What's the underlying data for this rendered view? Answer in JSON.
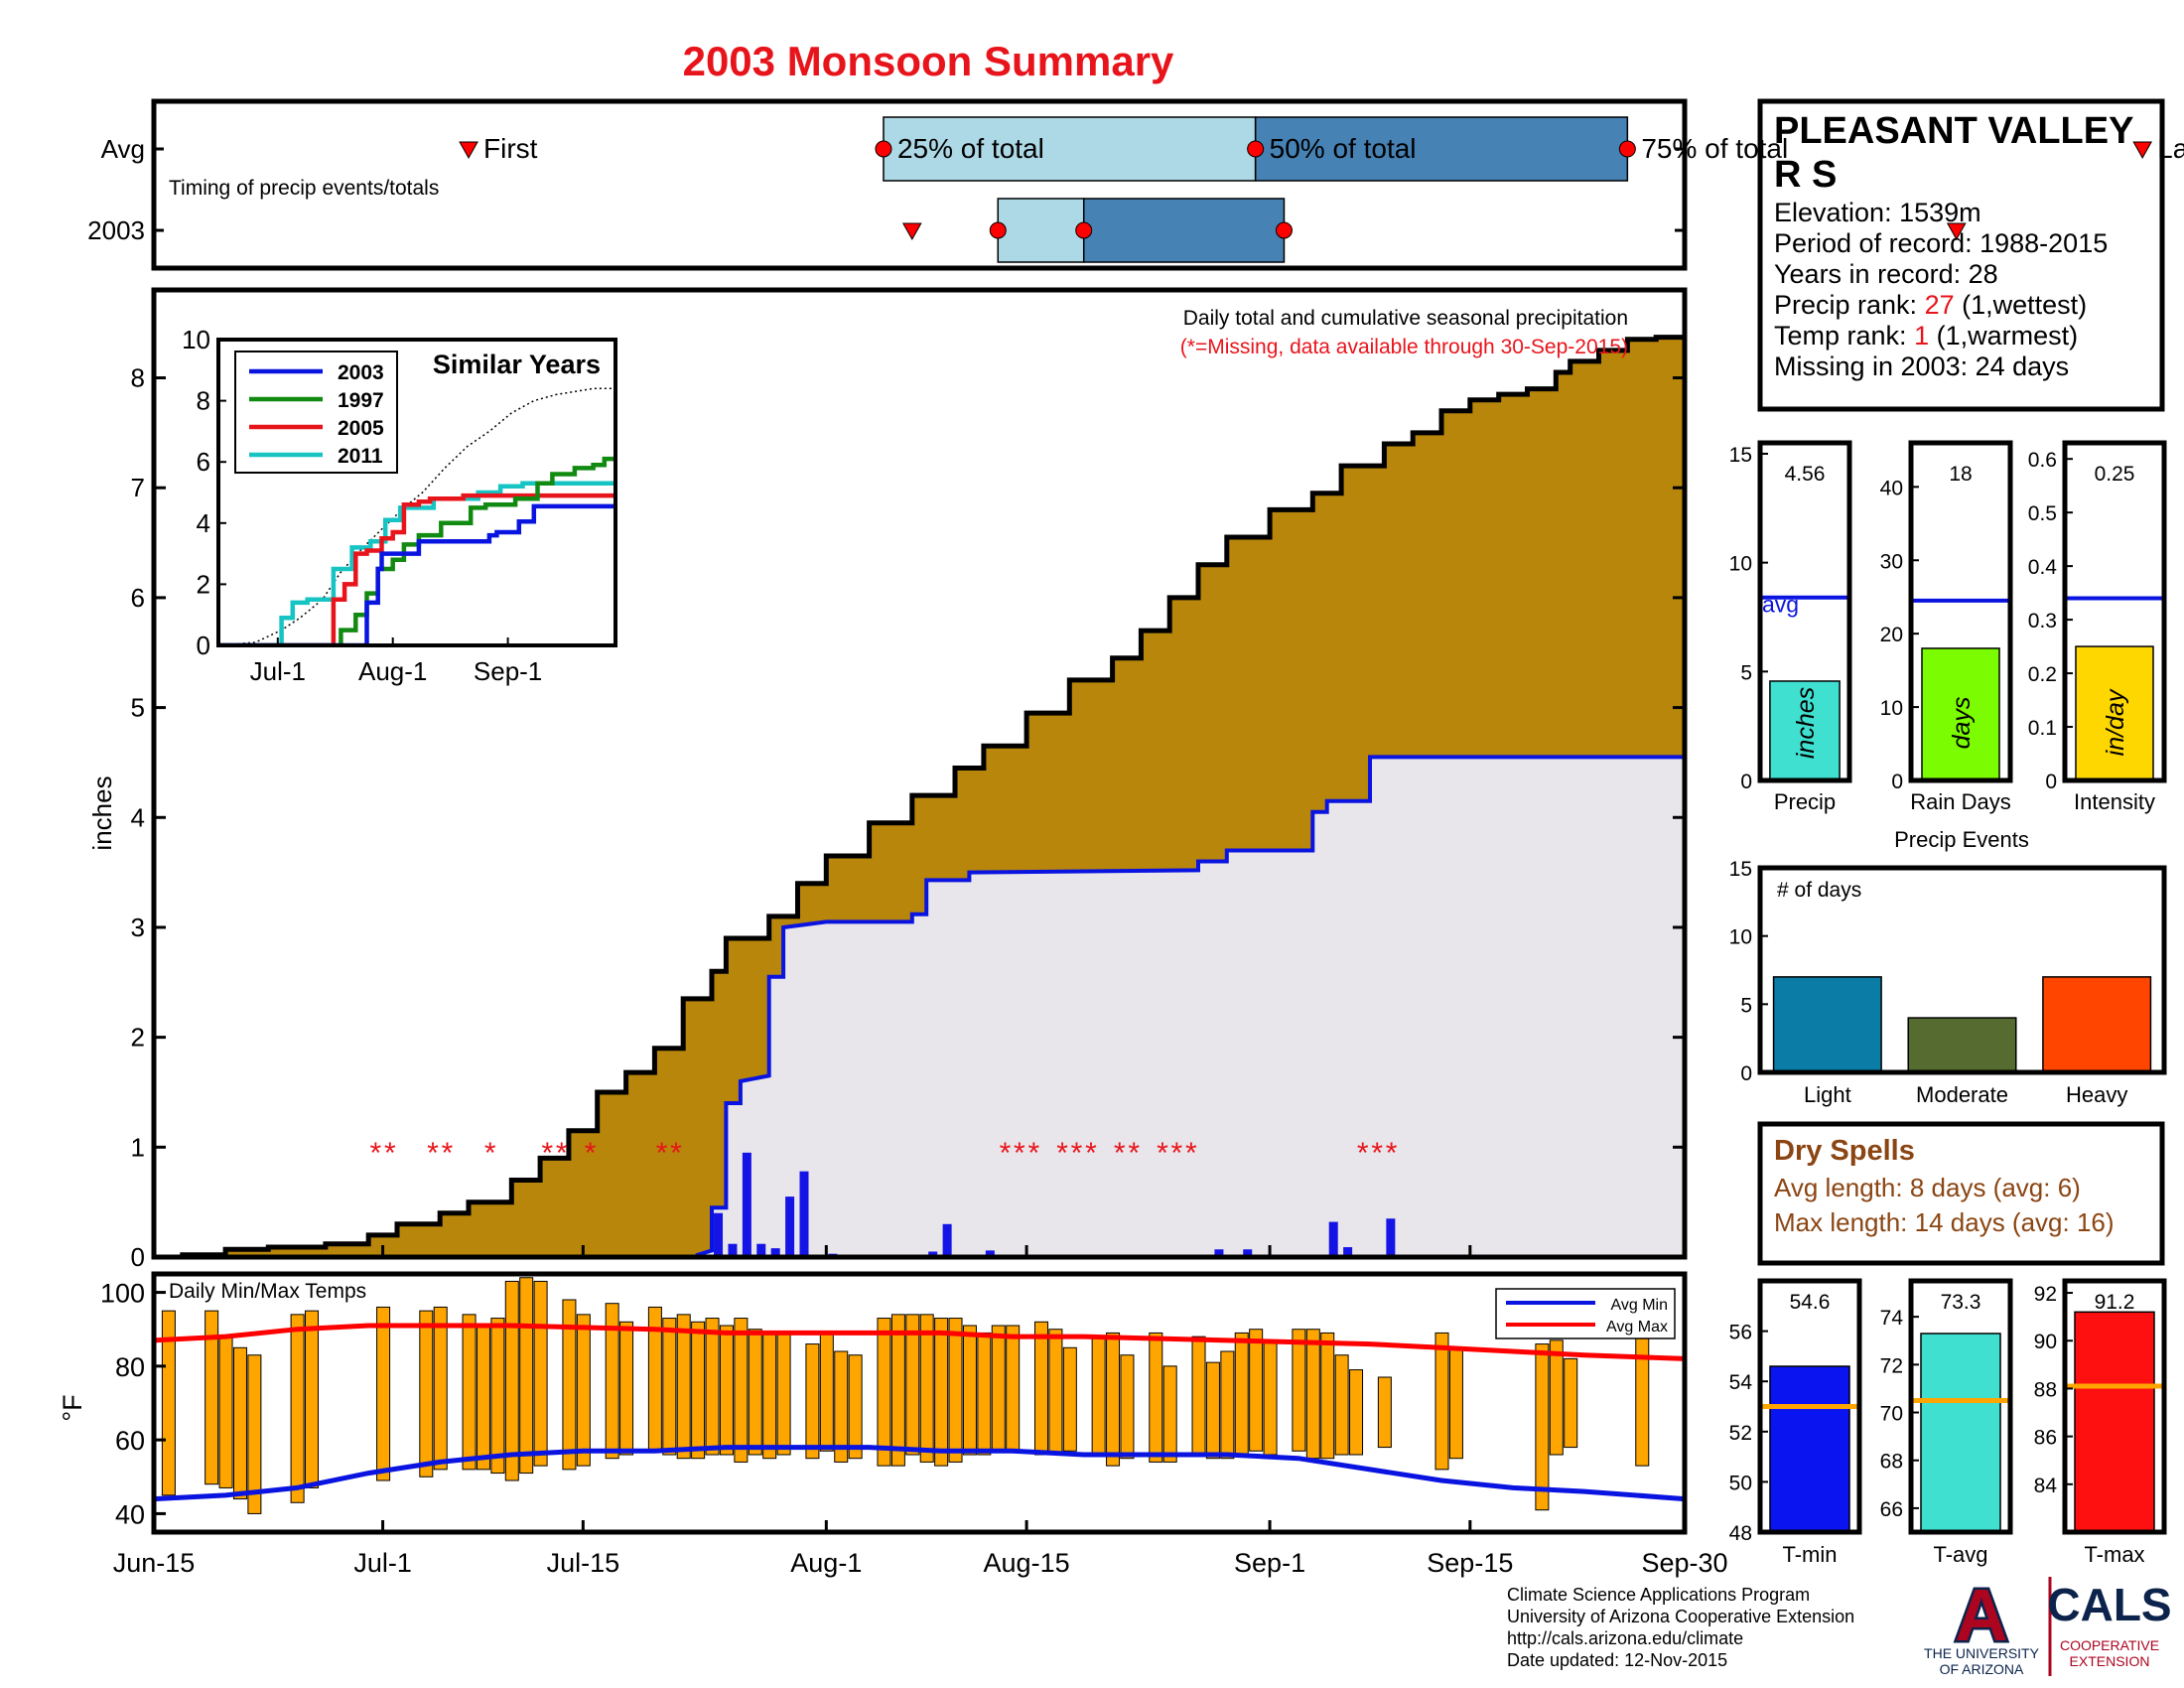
{
  "page_title": "2003 Monsoon Summary",
  "colors": {
    "accent_red": "#e8141b",
    "fill_brown": "#b8860b",
    "fill_gray": "#e8e6ea",
    "line_blue": "#0a14e0",
    "bar_blue": "#1414e6"
  },
  "timing": {
    "caption": "Timing of precip events/totals",
    "rows": [
      "Avg",
      "2003"
    ],
    "labels": {
      "first": "First",
      "p25": "25% of total",
      "p50": "50% of total",
      "p75": "75% of total",
      "last": "Last"
    },
    "x_domain": [
      "Jun-15",
      "Sep-30"
    ],
    "avg": {
      "first": 22,
      "p25": 51,
      "p50": 77,
      "p75": 103,
      "last": 139
    },
    "y2003": {
      "first": 53,
      "p25": 59,
      "p50": 65,
      "p75": 79,
      "last": 126
    }
  },
  "station": {
    "name_line1": "PLEASANT VALLEY",
    "name_line2": "R S",
    "elevation": "Elevation: 1539m",
    "period": "Period of record: 1988-2015",
    "years": "Years in record: 28",
    "precip_rank_label": "Precip rank: ",
    "precip_rank_value": "27",
    "precip_rank_note": " (1,wettest)",
    "temp_rank_label": "Temp rank: ",
    "temp_rank_value": "1",
    "temp_rank_note": " (1,warmest)",
    "missing": "Missing in 2003: 24 days"
  },
  "main_chart": {
    "type": "area",
    "ylabel": "inches",
    "ylim": [
      0,
      8.8
    ],
    "yticks": [
      0,
      1,
      2,
      3,
      4,
      5,
      6,
      7,
      8
    ],
    "xticks": [
      "Jun-15",
      "Jul-1",
      "Jul-15",
      "Aug-1",
      "Aug-15",
      "Sep-1",
      "Sep-15",
      "Sep-30"
    ],
    "xtick_days": [
      0,
      16,
      30,
      47,
      61,
      78,
      92,
      107
    ],
    "note_line1": "Daily total and cumulative seasonal precipitation",
    "note_line2": "(*=Missing, data available through 30-Sep-2015)",
    "missing_marker": "*",
    "avg_cumulative": [
      [
        0,
        0
      ],
      [
        2,
        0.02
      ],
      [
        5,
        0.07
      ],
      [
        8,
        0.09
      ],
      [
        12,
        0.12
      ],
      [
        15,
        0.2
      ],
      [
        17,
        0.3
      ],
      [
        20,
        0.4
      ],
      [
        22,
        0.5
      ],
      [
        25,
        0.7
      ],
      [
        27,
        0.9
      ],
      [
        29,
        1.15
      ],
      [
        31,
        1.5
      ],
      [
        33,
        1.68
      ],
      [
        35,
        1.9
      ],
      [
        37,
        2.35
      ],
      [
        39,
        2.6
      ],
      [
        40,
        2.9
      ],
      [
        43,
        3.1
      ],
      [
        45,
        3.4
      ],
      [
        47,
        3.65
      ],
      [
        50,
        3.95
      ],
      [
        53,
        4.2
      ],
      [
        56,
        4.45
      ],
      [
        58,
        4.65
      ],
      [
        61,
        4.95
      ],
      [
        64,
        5.25
      ],
      [
        67,
        5.45
      ],
      [
        69,
        5.7
      ],
      [
        71,
        6.0
      ],
      [
        73,
        6.3
      ],
      [
        75,
        6.55
      ],
      [
        78,
        6.8
      ],
      [
        81,
        6.95
      ],
      [
        83,
        7.2
      ],
      [
        86,
        7.4
      ],
      [
        88,
        7.5
      ],
      [
        90,
        7.7
      ],
      [
        92,
        7.8
      ],
      [
        94,
        7.85
      ],
      [
        96,
        7.9
      ],
      [
        98,
        8.05
      ],
      [
        99,
        8.15
      ],
      [
        101,
        8.25
      ],
      [
        103,
        8.35
      ],
      [
        105,
        8.37
      ],
      [
        107,
        8.38
      ]
    ],
    "cumulative_2003": [
      [
        0,
        0
      ],
      [
        38,
        0
      ],
      [
        38,
        0.02
      ],
      [
        39,
        0.06
      ],
      [
        39,
        0.45
      ],
      [
        40,
        0.45
      ],
      [
        40,
        1.4
      ],
      [
        41,
        1.4
      ],
      [
        41,
        1.6
      ],
      [
        43,
        1.65
      ],
      [
        43,
        2.55
      ],
      [
        44,
        2.55
      ],
      [
        44,
        3.0
      ],
      [
        47,
        3.05
      ],
      [
        53,
        3.05
      ],
      [
        53,
        3.12
      ],
      [
        54,
        3.12
      ],
      [
        54,
        3.43
      ],
      [
        57,
        3.43
      ],
      [
        57,
        3.5
      ],
      [
        73,
        3.52
      ],
      [
        73,
        3.6
      ],
      [
        75,
        3.6
      ],
      [
        75,
        3.7
      ],
      [
        81,
        3.7
      ],
      [
        81,
        4.05
      ],
      [
        82,
        4.05
      ],
      [
        82,
        4.15
      ],
      [
        85,
        4.15
      ],
      [
        85,
        4.55
      ],
      [
        107,
        4.55
      ]
    ],
    "daily_bars_2003": [
      [
        39,
        0.4
      ],
      [
        40,
        0.12
      ],
      [
        41,
        0.95
      ],
      [
        42,
        0.12
      ],
      [
        43,
        0.08
      ],
      [
        44,
        0.55
      ],
      [
        45,
        0.78
      ],
      [
        47,
        0.03
      ],
      [
        54,
        0.05
      ],
      [
        55,
        0.3
      ],
      [
        58,
        0.06
      ],
      [
        74,
        0.07
      ],
      [
        76,
        0.07
      ],
      [
        82,
        0.32
      ],
      [
        83,
        0.09
      ],
      [
        86,
        0.35
      ]
    ],
    "missing_days_2003": [
      15.5,
      16.5,
      19.5,
      20.5,
      23.5,
      27.5,
      28.5,
      30.5,
      35.5,
      36.5,
      59.5,
      60.5,
      61.5,
      63.5,
      64.5,
      65.5,
      67.5,
      68.5,
      70.5,
      71.5,
      72.5,
      84.5,
      85.5,
      86.5
    ]
  },
  "similar_years": {
    "title": "Similar Years",
    "ylim": [
      0,
      10
    ],
    "yticks": [
      0,
      2,
      4,
      6,
      8,
      10
    ],
    "xticks": [
      "Jul-1",
      "Aug-1",
      "Sep-1"
    ],
    "xtick_days": [
      16,
      47,
      78
    ],
    "legend": [
      "2003",
      "1997",
      "2005",
      "2011"
    ],
    "colors": {
      "y2003": "#0a14e0",
      "y1997": "#118a11",
      "y2005": "#e8141b",
      "y2011": "#16c4c4"
    },
    "avg_cumulative": [
      [
        0,
        0
      ],
      [
        10,
        0.1
      ],
      [
        17,
        0.5
      ],
      [
        22,
        0.9
      ],
      [
        28,
        1.5
      ],
      [
        33,
        2.4
      ],
      [
        39,
        3.2
      ],
      [
        44,
        3.8
      ],
      [
        50,
        4.5
      ],
      [
        55,
        5.0
      ],
      [
        61,
        5.8
      ],
      [
        67,
        6.5
      ],
      [
        73,
        7.0
      ],
      [
        79,
        7.6
      ],
      [
        85,
        8.0
      ],
      [
        91,
        8.2
      ],
      [
        96,
        8.3
      ],
      [
        101,
        8.4
      ],
      [
        107,
        8.4
      ]
    ],
    "y2003": [
      [
        0,
        0
      ],
      [
        38,
        0
      ],
      [
        40,
        1.4
      ],
      [
        43,
        2.5
      ],
      [
        44,
        3.0
      ],
      [
        54,
        3.4
      ],
      [
        73,
        3.6
      ],
      [
        75,
        3.7
      ],
      [
        81,
        4.05
      ],
      [
        85,
        4.55
      ],
      [
        107,
        4.55
      ]
    ],
    "y1997": [
      [
        0,
        0
      ],
      [
        31,
        0
      ],
      [
        33,
        0.5
      ],
      [
        37,
        1.0
      ],
      [
        40,
        1.7
      ],
      [
        43,
        2.5
      ],
      [
        47,
        2.8
      ],
      [
        50,
        3.3
      ],
      [
        54,
        3.6
      ],
      [
        60,
        4.0
      ],
      [
        68,
        4.5
      ],
      [
        72,
        4.6
      ],
      [
        80,
        4.8
      ],
      [
        86,
        5.3
      ],
      [
        90,
        5.6
      ],
      [
        96,
        5.8
      ],
      [
        101,
        5.9
      ],
      [
        104,
        6.1
      ],
      [
        107,
        6.1
      ]
    ],
    "y2005": [
      [
        0,
        0
      ],
      [
        29,
        0
      ],
      [
        31,
        1.5
      ],
      [
        34,
        2.0
      ],
      [
        37,
        3.0
      ],
      [
        40,
        3.1
      ],
      [
        44,
        3.5
      ],
      [
        47,
        3.7
      ],
      [
        50,
        4.6
      ],
      [
        54,
        4.7
      ],
      [
        57,
        4.8
      ],
      [
        61,
        4.8
      ],
      [
        66,
        4.9
      ],
      [
        72,
        4.9
      ],
      [
        76,
        4.9
      ],
      [
        83,
        4.9
      ],
      [
        87,
        4.9
      ],
      [
        91,
        4.9
      ],
      [
        96,
        4.9
      ],
      [
        107,
        4.9
      ]
    ],
    "y2011": [
      [
        0,
        0
      ],
      [
        16,
        0
      ],
      [
        17,
        0.9
      ],
      [
        20,
        1.4
      ],
      [
        24,
        1.5
      ],
      [
        28,
        1.5
      ],
      [
        31,
        2.5
      ],
      [
        36,
        3.2
      ],
      [
        41,
        3.4
      ],
      [
        45,
        4.1
      ],
      [
        49,
        4.5
      ],
      [
        54,
        4.5
      ],
      [
        58,
        4.8
      ],
      [
        65,
        4.8
      ],
      [
        70,
        5.0
      ],
      [
        76,
        5.2
      ],
      [
        82,
        5.3
      ],
      [
        90,
        5.3
      ],
      [
        96,
        5.3
      ],
      [
        107,
        5.4
      ]
    ]
  },
  "temps": {
    "caption": "Daily Min/Max Temps",
    "ylabel": "°F",
    "ylim": [
      35,
      105
    ],
    "yticks": [
      40,
      60,
      80,
      100
    ],
    "legend_min": "Avg Min",
    "legend_max": "Avg Max",
    "avg_max": [
      [
        0,
        87
      ],
      [
        5,
        88
      ],
      [
        10,
        90
      ],
      [
        15,
        91
      ],
      [
        20,
        91
      ],
      [
        25,
        91
      ],
      [
        30,
        90.5
      ],
      [
        35,
        90
      ],
      [
        40,
        89
      ],
      [
        45,
        89
      ],
      [
        50,
        89
      ],
      [
        55,
        89
      ],
      [
        60,
        88
      ],
      [
        65,
        88
      ],
      [
        70,
        87.5
      ],
      [
        75,
        87
      ],
      [
        80,
        86.5
      ],
      [
        85,
        86
      ],
      [
        90,
        85
      ],
      [
        95,
        84
      ],
      [
        100,
        83
      ],
      [
        107,
        82
      ]
    ],
    "avg_min": [
      [
        0,
        44
      ],
      [
        5,
        45
      ],
      [
        10,
        47
      ],
      [
        15,
        51
      ],
      [
        20,
        54
      ],
      [
        25,
        56
      ],
      [
        30,
        57
      ],
      [
        35,
        57
      ],
      [
        40,
        58
      ],
      [
        45,
        58
      ],
      [
        50,
        58
      ],
      [
        55,
        57
      ],
      [
        60,
        57
      ],
      [
        65,
        56
      ],
      [
        70,
        56
      ],
      [
        75,
        56
      ],
      [
        80,
        55
      ],
      [
        85,
        52
      ],
      [
        90,
        49
      ],
      [
        95,
        47
      ],
      [
        100,
        46
      ],
      [
        107,
        44
      ]
    ],
    "bars": [
      [
        1,
        45,
        95
      ],
      [
        4,
        48,
        95
      ],
      [
        5,
        47,
        88
      ],
      [
        6,
        44,
        85
      ],
      [
        7,
        40,
        83
      ],
      [
        10,
        43,
        94
      ],
      [
        11,
        47,
        95
      ],
      [
        16,
        49,
        96
      ],
      [
        19,
        50,
        95
      ],
      [
        20,
        52,
        96
      ],
      [
        22,
        52,
        94
      ],
      [
        23,
        52,
        91
      ],
      [
        24,
        51,
        93
      ],
      [
        25,
        49,
        103
      ],
      [
        26,
        51,
        104
      ],
      [
        27,
        53,
        103
      ],
      [
        29,
        52,
        98
      ],
      [
        30,
        53,
        94
      ],
      [
        32,
        55,
        97
      ],
      [
        33,
        56,
        92
      ],
      [
        35,
        57,
        96
      ],
      [
        36,
        56,
        93
      ],
      [
        37,
        55,
        94
      ],
      [
        38,
        55,
        92
      ],
      [
        39,
        56,
        93
      ],
      [
        40,
        56,
        91
      ],
      [
        41,
        54,
        93
      ],
      [
        42,
        56,
        90
      ],
      [
        43,
        55,
        89
      ],
      [
        44,
        56,
        89
      ],
      [
        46,
        55,
        86
      ],
      [
        47,
        57,
        89
      ],
      [
        48,
        54,
        84
      ],
      [
        49,
        55,
        83
      ],
      [
        51,
        53,
        93
      ],
      [
        52,
        53,
        94
      ],
      [
        53,
        56,
        94
      ],
      [
        54,
        54,
        94
      ],
      [
        55,
        53,
        93
      ],
      [
        56,
        54,
        93
      ],
      [
        57,
        56,
        91
      ],
      [
        58,
        56,
        89
      ],
      [
        59,
        57,
        91
      ],
      [
        60,
        57,
        91
      ],
      [
        62,
        56,
        92
      ],
      [
        63,
        56,
        90
      ],
      [
        64,
        57,
        85
      ],
      [
        66,
        56,
        88
      ],
      [
        67,
        53,
        89
      ],
      [
        68,
        55,
        83
      ],
      [
        70,
        54,
        89
      ],
      [
        71,
        54,
        80
      ],
      [
        73,
        56,
        88
      ],
      [
        74,
        55,
        81
      ],
      [
        75,
        55,
        84
      ],
      [
        76,
        56,
        89
      ],
      [
        77,
        57,
        90
      ],
      [
        78,
        56,
        87
      ],
      [
        80,
        57,
        90
      ],
      [
        81,
        55,
        90
      ],
      [
        82,
        55,
        89
      ],
      [
        83,
        56,
        83
      ],
      [
        84,
        56,
        79
      ],
      [
        86,
        58,
        77
      ],
      [
        90,
        52,
        89
      ],
      [
        91,
        55,
        85
      ],
      [
        97,
        41,
        86
      ],
      [
        98,
        56,
        87
      ],
      [
        99,
        58,
        82
      ],
      [
        104,
        53,
        91
      ]
    ],
    "xticks": [
      "Jun-15",
      "Jul-1",
      "Jul-15",
      "Aug-1",
      "Aug-15",
      "Sep-1",
      "Sep-15",
      "Sep-30"
    ],
    "xtick_days": [
      0,
      16,
      30,
      47,
      61,
      78,
      92,
      107
    ]
  },
  "summary_bars": [
    {
      "label": "Precip",
      "unit": "inches",
      "value": 4.56,
      "value_text": "4.56",
      "avg": 8.4,
      "avg_label": "avg",
      "ymax": 15.5,
      "yticks": [
        0,
        5,
        10,
        15
      ],
      "color": "#40e0d0"
    },
    {
      "label": "Rain Days",
      "unit": "days",
      "value": 18,
      "value_text": "18",
      "avg": 24.5,
      "ymax": 46,
      "yticks": [
        0,
        10,
        20,
        30,
        40
      ],
      "color": "#7cfc00"
    },
    {
      "label": "Intensity",
      "unit": "in/day",
      "value": 0.25,
      "value_text": "0.25",
      "avg": 0.34,
      "ymax": 0.63,
      "yticks": [
        0,
        0.1,
        0.2,
        0.3,
        0.4,
        0.5,
        0.6
      ],
      "color": "#ffd700"
    }
  ],
  "precip_events": {
    "title": "Precip Events",
    "ylabel": "# of days",
    "ylim": [
      0,
      15
    ],
    "yticks": [
      0,
      5,
      10,
      15
    ],
    "categories": [
      "Light",
      "Moderate",
      "Heavy"
    ],
    "values": [
      7,
      4,
      7
    ],
    "colors": [
      "#0a7ca5",
      "#556b2f",
      "#ff4500"
    ]
  },
  "dry_spells": {
    "title": "Dry Spells",
    "avg_length": "Avg length: 8 days (avg: 6)",
    "max_length": "Max length: 14 days (avg: 16)",
    "color": "#8b4513"
  },
  "temp_summary": [
    {
      "label": "T-min",
      "value": 54.6,
      "value_text": "54.6",
      "avg": 53.0,
      "ymin": 48,
      "ymax": 58,
      "yticks": [
        48,
        50,
        52,
        54,
        56
      ],
      "color": "#0a14f0"
    },
    {
      "label": "T-avg",
      "value": 73.3,
      "value_text": "73.3",
      "avg": 70.5,
      "ymin": 65,
      "ymax": 75.5,
      "yticks": [
        66,
        68,
        70,
        72,
        74
      ],
      "color": "#40e0d0"
    },
    {
      "label": "T-max",
      "value": 91.2,
      "value_text": "91.2",
      "avg": 88.1,
      "ymin": 82,
      "ymax": 92.5,
      "yticks": [
        84,
        86,
        88,
        90,
        92
      ],
      "color": "#ff1010"
    }
  ],
  "footer": {
    "line1": "Climate Science Applications Program",
    "line2": "University of Arizona Cooperative Extension",
    "line3": "http://cals.arizona.edu/climate",
    "line4": " Date updated: 12-Nov-2015",
    "ua_logo_letter": "A",
    "ua_line1": "THE UNIVERSITY",
    "ua_line2": "OF ARIZONA",
    "cals_logo": "CALS",
    "cals_line1": "COOPERATIVE",
    "cals_line2": "EXTENSION"
  }
}
